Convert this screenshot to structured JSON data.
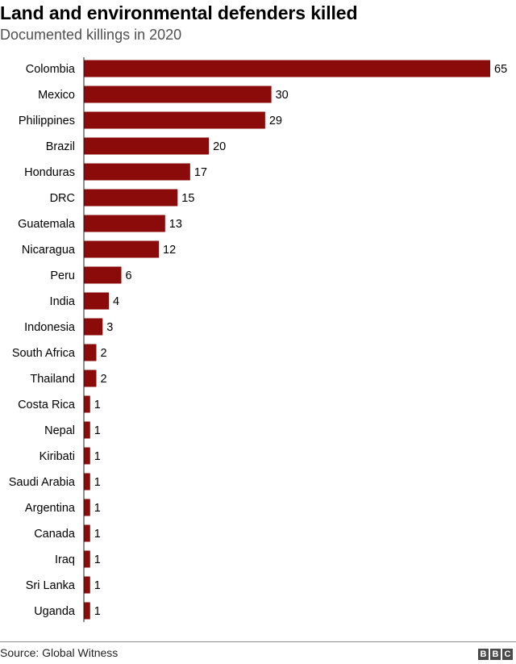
{
  "header": {
    "title": "Land and environmental defenders killed",
    "subtitle": "Documented killings in 2020"
  },
  "footer": {
    "source": "Source: Global Witness",
    "logo_letters": [
      "B",
      "B",
      "C"
    ]
  },
  "colors": {
    "bar": "#8b0a0a",
    "axis": "#222222",
    "text": "#000000"
  },
  "chart_data": {
    "type": "bar",
    "orientation": "horizontal",
    "categories": [
      "Colombia",
      "Mexico",
      "Philippines",
      "Brazil",
      "Honduras",
      "DRC",
      "Guatemala",
      "Nicaragua",
      "Peru",
      "India",
      "Indonesia",
      "South Africa",
      "Thailand",
      "Costa Rica",
      "Nepal",
      "Kiribati",
      "Saudi Arabia",
      "Argentina",
      "Canada",
      "Iraq",
      "Sri Lanka",
      "Uganda"
    ],
    "values": [
      65,
      30,
      29,
      20,
      17,
      15,
      13,
      12,
      6,
      4,
      3,
      2,
      2,
      1,
      1,
      1,
      1,
      1,
      1,
      1,
      1,
      1
    ],
    "data_labels": [
      "65",
      "30",
      "29",
      "20",
      "17",
      "15",
      "13",
      "12",
      "6",
      "4",
      "3",
      "2",
      "2",
      "1",
      "1",
      "1",
      "1",
      "1",
      "1",
      "1",
      "1",
      "1"
    ],
    "xlim": [
      0,
      65
    ],
    "grid": false,
    "legend": "none"
  }
}
